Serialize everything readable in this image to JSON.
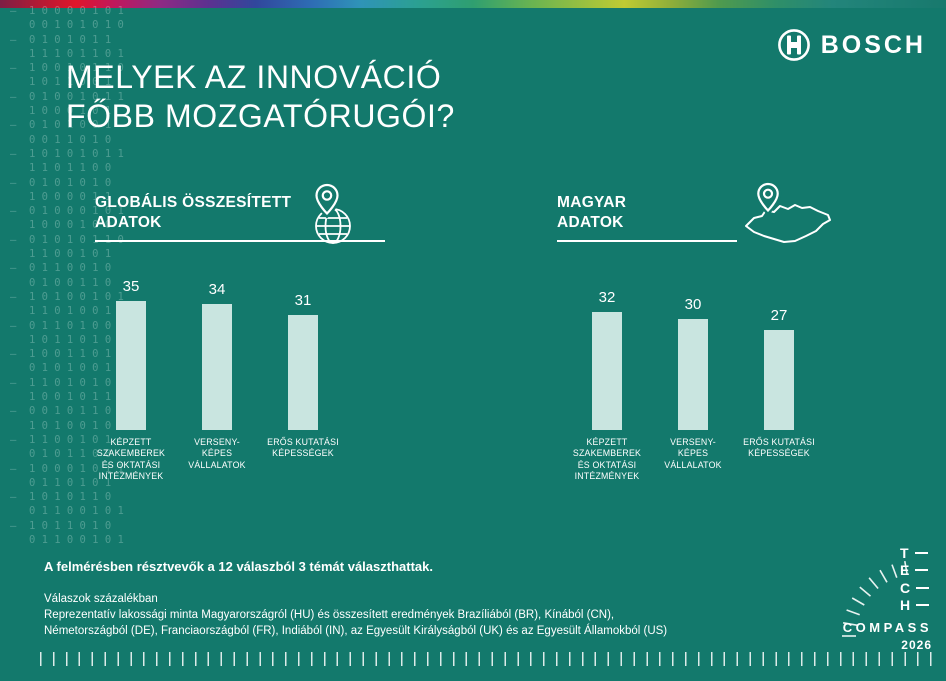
{
  "brand": {
    "name": "BOSCH"
  },
  "title": {
    "line1": "MELYEK AZ INNOVÁCIÓ",
    "line2": "FŐBB MOZGATÓRUGÓI?"
  },
  "sections": [
    {
      "header_line1": "GLOBÁLIS ÖSSZESÍTETT",
      "header_line2": "ADATOK",
      "icon": "pin-globe-icon"
    },
    {
      "header_line1": "MAGYAR",
      "header_line2": "ADATOK",
      "icon": "pin-hungary-map-icon"
    }
  ],
  "chart_data": [
    {
      "type": "bar",
      "title": "GLOBÁLIS ÖSSZESÍTETT ADATOK",
      "categories": [
        "KÉPZETT SZAKEMBEREK ÉS OKTATÁSI INTÉZMÉNYEK",
        "VERSENYKÉPES VÁLLALATOK",
        "ERŐS KUTATÁSI KÉPESSÉGEK"
      ],
      "category_lines": [
        [
          "KÉPZETT",
          "SZAKEMBEREK",
          "ÉS OKTATÁSI",
          "INTÉZMÉNYEK"
        ],
        [
          "VERSENY-",
          "KÉPES",
          "VÁLLALATOK"
        ],
        [
          "ERŐS KUTATÁSI",
          "KÉPESSÉGEK"
        ]
      ],
      "values": [
        35,
        34,
        31
      ],
      "ylim": [
        0,
        40
      ],
      "ylabel": "",
      "xlabel": ""
    },
    {
      "type": "bar",
      "title": "MAGYAR ADATOK",
      "categories": [
        "KÉPZETT SZAKEMBEREK ÉS OKTATÁSI INTÉZMÉNYEK",
        "VERSENYKÉPES VÁLLALATOK",
        "ERŐS KUTATÁSI KÉPESSÉGEK"
      ],
      "category_lines": [
        [
          "KÉPZETT",
          "SZAKEMBEREK",
          "ÉS OKTATÁSI",
          "INTÉZMÉNYEK"
        ],
        [
          "VERSENY-",
          "KÉPES",
          "VÁLLALATOK"
        ],
        [
          "ERŐS KUTATÁSI",
          "KÉPESSÉGEK"
        ]
      ],
      "values": [
        32,
        30,
        27
      ],
      "ylim": [
        0,
        40
      ],
      "ylabel": "",
      "xlabel": ""
    }
  ],
  "footnotes": {
    "bold": "A felmérésben résztvevők a 12 válaszból 3 témát választhattak.",
    "small": "Válaszok százalékban\nReprezentatív lakossági minta Magyarországról (HU) és összesített eredmények Brazíliából (BR), Kínából (CN),\nNémetországból (DE), Franciaországból (FR), Indiából (IN), az Egyesült Királyságból (UK) és az Egyesült Államokból (US)"
  },
  "tech_logo": {
    "letters": [
      "T",
      "E",
      "C",
      "H"
    ],
    "word": "COMPASS",
    "year": "2026"
  },
  "colors": {
    "background": "#13796C",
    "bar_fill": "#C9E5E0",
    "text": "#FFFFFF"
  },
  "background_binary": [
    "–  1 0 0 0 0 1 0 1",
    "   0 0 1 0 1 0 1 0",
    "–  0 1 0 1 0 1 1",
    "   1 1 1 0 1 1 0 1",
    "–  1 0 0 1 0 1 1 0",
    "   1 0 1 1 0 0 1",
    "–  0 1 0 0 1 0 1 1",
    "   1 0 0 0 1 0 1",
    "–  0 1 0 1 0 0 1",
    "   0 0 1 1 0 1 0",
    "–  1 0 1 0 1 0 1 1",
    "   1 1 0 1 1 0 0",
    "–  0 1 0 1 0 1 0",
    "   1 0 0 0 0 1 1",
    "–  0 1 0 0 0 1 0 1",
    "   1 0 0 0 1 0 0",
    "–  0 1 0 1 0 1 1 0",
    "   1 1 0 0 1 0 1",
    "–  0 1 1 0 0 1 0",
    "   0 1 0 0 1 1 0",
    "–  1 0 1 0 0 1 0 1",
    "   1 1 0 1 0 0 1",
    "–  0 1 1 0 1 0 0",
    "   1 0 1 1 0 1 0",
    "–  1 0 0 1 1 0 1",
    "   0 1 0 1 0 0 1 1",
    "–  1 1 0 1 0 1 0",
    "   1 0 0 1 0 1 1",
    "–  0 0 1 0 1 1 0",
    "   1 0 1 0 0 1 0 1",
    "–  1 1 0 0 1 0 1",
    "   0 1 0 1 1 0 0",
    "–  1 0 0 0 1 0 1 1",
    "   0 1 1 0 1 0 1",
    "–  1 0 1 0 1 1 0",
    "   0 1 1 0 0 1 0 1",
    "–  1 0 1 1 0 1 0",
    "   0 1 1 0 0 1 0 1"
  ]
}
